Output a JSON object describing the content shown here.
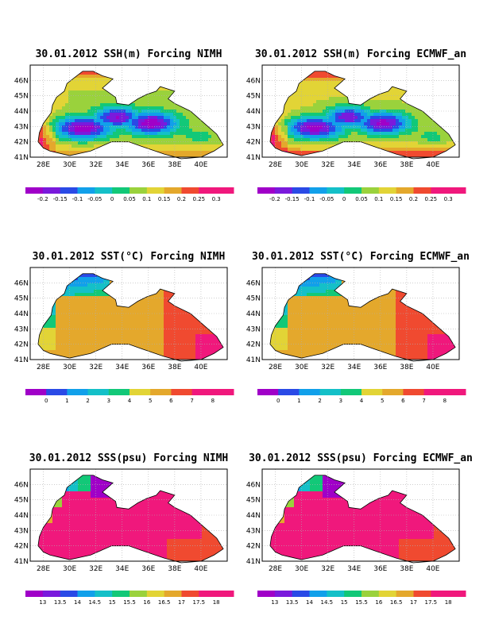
{
  "colors": {
    "land": "#ffffff",
    "coast": "#000000",
    "grid": "#b0b0b0",
    "palette": [
      "#a000c8",
      "#7a1adc",
      "#2a4ae6",
      "#11a0ea",
      "#14c0c8",
      "#12c878",
      "#9ad23c",
      "#e2d436",
      "#e4a82c",
      "#f04a30",
      "#f0187c"
    ]
  },
  "chart_data": [
    {
      "type": "heatmap",
      "panel": "ssh-nimh",
      "title": "30.01.2012 SSH(m) Forcing NIMH",
      "xlim": [
        27,
        42
      ],
      "ylim": [
        41,
        47
      ],
      "x_ticks": [
        "28E",
        "30E",
        "32E",
        "34E",
        "36E",
        "38E",
        "40E"
      ],
      "y_ticks": [
        "41N",
        "42N",
        "43N",
        "44N",
        "45N",
        "46N"
      ],
      "colorbar": [
        "-0.2",
        "-0.15",
        "-0.1",
        "-0.05",
        "0",
        "0.05",
        "0.1",
        "0.15",
        "0.2",
        "0.25",
        "0.3"
      ]
    },
    {
      "type": "heatmap",
      "panel": "ssh-ecmwf",
      "title": "30.01.2012 SSH(m) Forcing ECMWF_an",
      "xlim": [
        27,
        42
      ],
      "ylim": [
        41,
        47
      ],
      "x_ticks": [
        "28E",
        "30E",
        "32E",
        "34E",
        "36E",
        "38E",
        "40E"
      ],
      "y_ticks": [
        "41N",
        "42N",
        "43N",
        "44N",
        "45N",
        "46N"
      ],
      "colorbar": [
        "-0.2",
        "-0.15",
        "-0.1",
        "-0.05",
        "0",
        "0.05",
        "0.1",
        "0.15",
        "0.2",
        "0.25",
        "0.3"
      ]
    },
    {
      "type": "heatmap",
      "panel": "sst-nimh",
      "title": "30.01.2012 SST(°C) Forcing NIMH",
      "xlim": [
        27,
        42
      ],
      "ylim": [
        41,
        47
      ],
      "x_ticks": [
        "28E",
        "30E",
        "32E",
        "34E",
        "36E",
        "38E",
        "40E"
      ],
      "y_ticks": [
        "41N",
        "42N",
        "43N",
        "44N",
        "45N",
        "46N"
      ],
      "colorbar": [
        "0",
        "1",
        "2",
        "3",
        "4",
        "5",
        "6",
        "7",
        "8"
      ]
    },
    {
      "type": "heatmap",
      "panel": "sst-ecmwf",
      "title": "30.01.2012 SST(°C) Forcing ECMWF_an",
      "xlim": [
        27,
        42
      ],
      "ylim": [
        41,
        47
      ],
      "x_ticks": [
        "28E",
        "30E",
        "32E",
        "34E",
        "36E",
        "38E",
        "40E"
      ],
      "y_ticks": [
        "41N",
        "42N",
        "43N",
        "44N",
        "45N",
        "46N"
      ],
      "colorbar": [
        "0",
        "1",
        "2",
        "3",
        "4",
        "5",
        "6",
        "7",
        "8"
      ]
    },
    {
      "type": "heatmap",
      "panel": "sss-nimh",
      "title": "30.01.2012 SSS(psu) Forcing NIMH",
      "xlim": [
        27,
        42
      ],
      "ylim": [
        41,
        47
      ],
      "x_ticks": [
        "28E",
        "30E",
        "32E",
        "34E",
        "36E",
        "38E",
        "40E"
      ],
      "y_ticks": [
        "41N",
        "42N",
        "43N",
        "44N",
        "45N",
        "46N"
      ],
      "colorbar": [
        "13",
        "13.5",
        "14",
        "14.5",
        "15",
        "15.5",
        "16",
        "16.5",
        "17",
        "17.5",
        "18"
      ]
    },
    {
      "type": "heatmap",
      "panel": "sss-ecmwf",
      "title": "30.01.2012 SSS(psu) Forcing ECMWF_an",
      "xlim": [
        27,
        42
      ],
      "ylim": [
        41,
        47
      ],
      "x_ticks": [
        "28E",
        "30E",
        "32E",
        "34E",
        "36E",
        "38E",
        "40E"
      ],
      "y_ticks": [
        "41N",
        "42N",
        "43N",
        "44N",
        "45N",
        "46N"
      ],
      "colorbar": [
        "13",
        "13.5",
        "14",
        "14.5",
        "15",
        "15.5",
        "16",
        "16.5",
        "17",
        "17.5",
        "18"
      ]
    }
  ]
}
